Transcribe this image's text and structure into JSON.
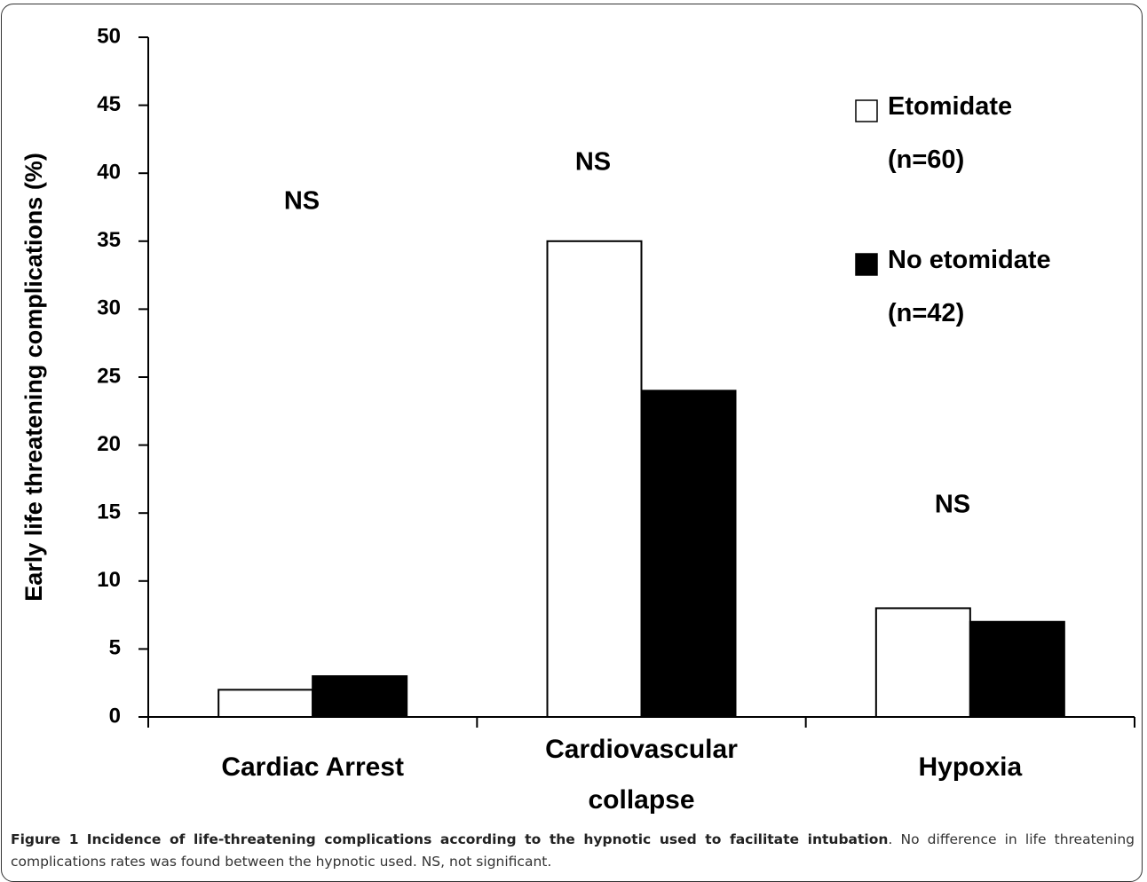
{
  "chart_data": {
    "type": "bar",
    "y_label": "Early life threatening complications (%)",
    "categories": [
      "Cardiac Arrest",
      "Cardiovascular\ncollapse",
      "Hypoxia"
    ],
    "series": [
      {
        "name": "Etomidate\n(n=60)",
        "color": "#ffffff",
        "values": [
          2,
          35,
          8
        ]
      },
      {
        "name": "No etomidate\n(n=42)",
        "color": "#000000",
        "values": [
          3,
          24,
          7
        ]
      }
    ],
    "annotations": [
      "NS",
      "NS",
      "NS"
    ],
    "ylim": [
      0,
      50
    ],
    "yticks": [
      0,
      5,
      10,
      15,
      20,
      25,
      30,
      35,
      40,
      45,
      50
    ],
    "grid": false,
    "legend": "upper right"
  },
  "caption": {
    "label": "Figure 1",
    "title": "Incidence of life-threatening complications according to the hypnotic used to facilitate intubation",
    "text": ". No difference in life threatening complications rates was found between the hypnotic used. NS, not significant."
  }
}
